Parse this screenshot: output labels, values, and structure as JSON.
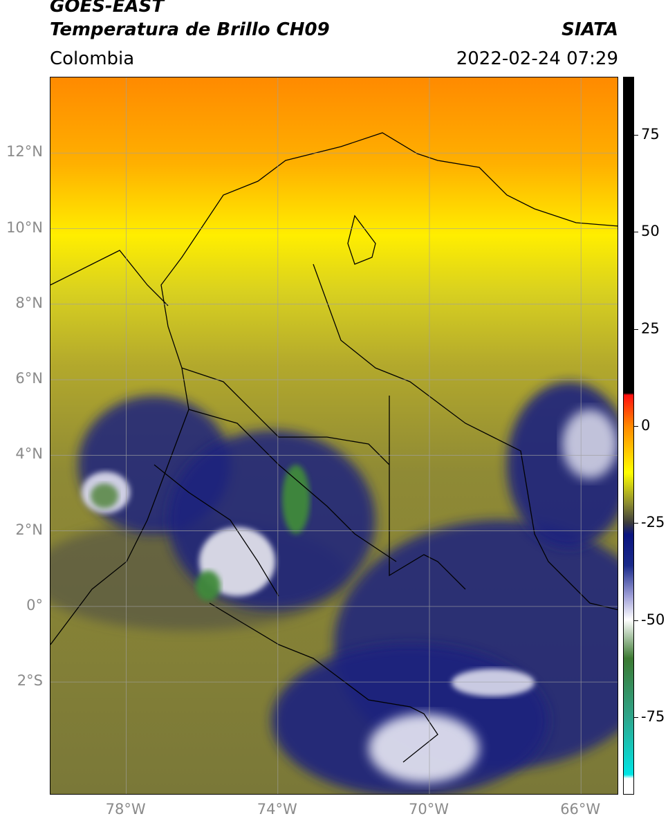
{
  "header": {
    "satellite": "GOES-EAST",
    "product": "Temperatura de Brillo CH09",
    "brand": "SIATA",
    "region": "Colombia",
    "datetime": "2022-02-24 07:29"
  },
  "map": {
    "lon_range": [
      -80.0,
      -65.0
    ],
    "lat_range": [
      -5.0,
      14.0
    ],
    "lat_ticks": [
      {
        "value": 12,
        "label": "12°N"
      },
      {
        "value": 10,
        "label": "10°N"
      },
      {
        "value": 8,
        "label": "8°N"
      },
      {
        "value": 6,
        "label": "6°N"
      },
      {
        "value": 4,
        "label": "4°N"
      },
      {
        "value": 2,
        "label": "2°N"
      },
      {
        "value": 0,
        "label": "0°"
      },
      {
        "value": -2,
        "label": "2°S"
      }
    ],
    "lon_ticks": [
      {
        "value": -78,
        "label": "78°W"
      },
      {
        "value": -74,
        "label": "74°W"
      },
      {
        "value": -70,
        "label": "70°W"
      },
      {
        "value": -66,
        "label": "66°W"
      }
    ],
    "gridlines": true
  },
  "colorbar": {
    "range": [
      -95,
      90
    ],
    "ticks": [
      {
        "value": 75,
        "label": "75"
      },
      {
        "value": 50,
        "label": "50"
      },
      {
        "value": 25,
        "label": "25"
      },
      {
        "value": 0,
        "label": "0"
      },
      {
        "value": -25,
        "label": "-25"
      },
      {
        "value": -50,
        "label": "-50"
      },
      {
        "value": -75,
        "label": "-75"
      }
    ],
    "stops": [
      {
        "value": 90,
        "color": "#000000"
      },
      {
        "value": 8.5,
        "color": "#000000"
      },
      {
        "value": 8,
        "color": "#ff1010"
      },
      {
        "value": 0,
        "color": "#ff8800"
      },
      {
        "value": -12,
        "color": "#ffff00"
      },
      {
        "value": -20,
        "color": "#8c8c30"
      },
      {
        "value": -25,
        "color": "#3c3c3c"
      },
      {
        "value": -28,
        "color": "#0a1580"
      },
      {
        "value": -36,
        "color": "#1a2a8a"
      },
      {
        "value": -44,
        "color": "#a0a0d8"
      },
      {
        "value": -50,
        "color": "#ffffff"
      },
      {
        "value": -60,
        "color": "#3c7a32"
      },
      {
        "value": -75,
        "color": "#2fa58a"
      },
      {
        "value": -90,
        "color": "#00e5e5"
      },
      {
        "value": -91,
        "color": "#ffffff"
      },
      {
        "value": -95,
        "color": "#ffffff"
      }
    ]
  }
}
